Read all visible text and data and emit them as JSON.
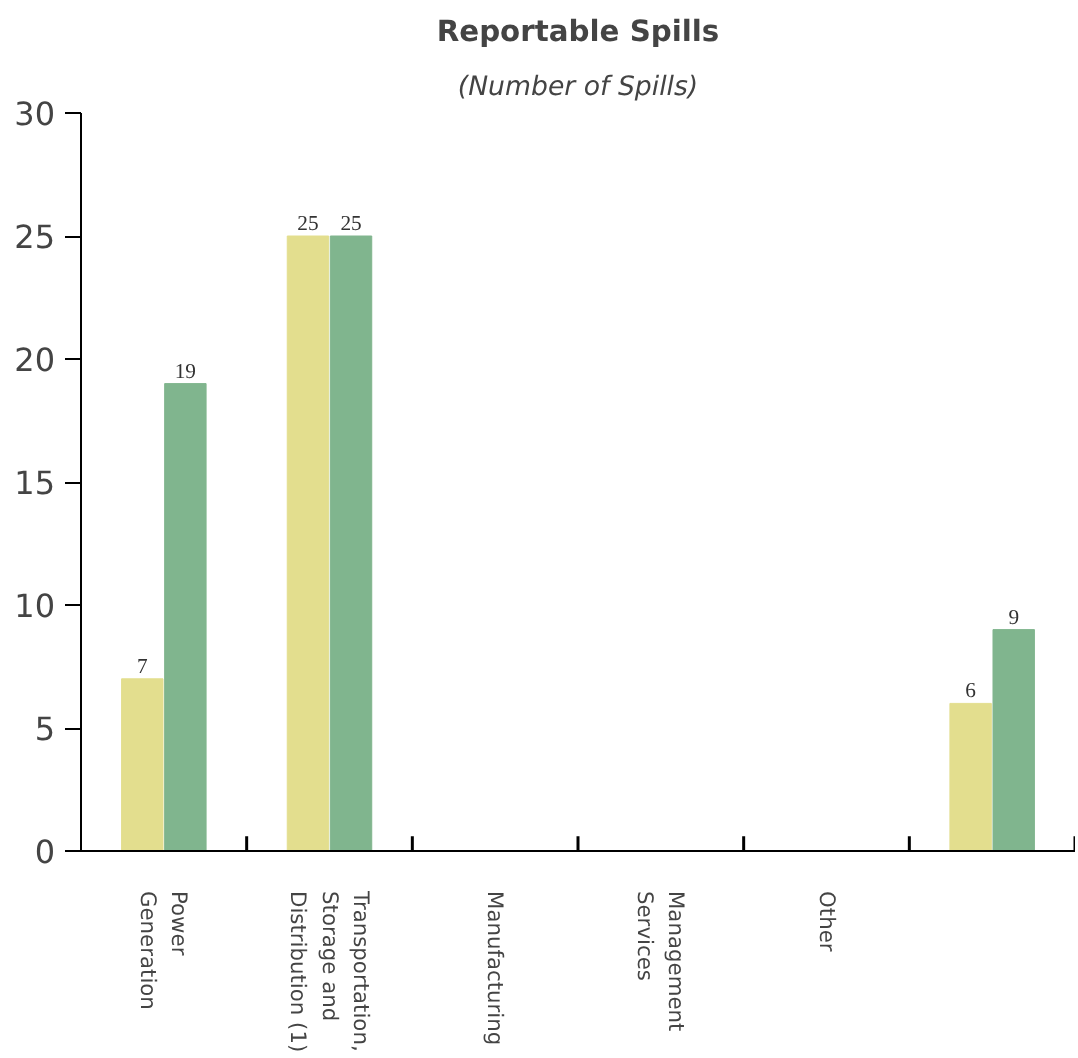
{
  "chart_data": {
    "type": "bar",
    "title": "Reportable Spills",
    "subtitle": "(Number of Spills)",
    "categories": [
      "Power\nGeneration",
      "Transportation,\nStorage and\nDistribution (1)",
      "Manufacturing",
      "Management\nServices",
      "Other",
      null
    ],
    "series": [
      {
        "color": "#e3de8e",
        "values": [
          7,
          25,
          0,
          0,
          0,
          6
        ],
        "value_labels": [
          "7",
          "25",
          null,
          null,
          null,
          "6"
        ]
      },
      {
        "color": "#80b58e",
        "values": [
          19,
          25,
          0,
          0,
          0,
          9
        ],
        "value_labels": [
          "19",
          "25",
          null,
          null,
          null,
          "9"
        ]
      }
    ],
    "ylim": [
      0,
      30
    ],
    "yticks": [
      0,
      5,
      10,
      15,
      20,
      25,
      30
    ],
    "grid": false
  }
}
